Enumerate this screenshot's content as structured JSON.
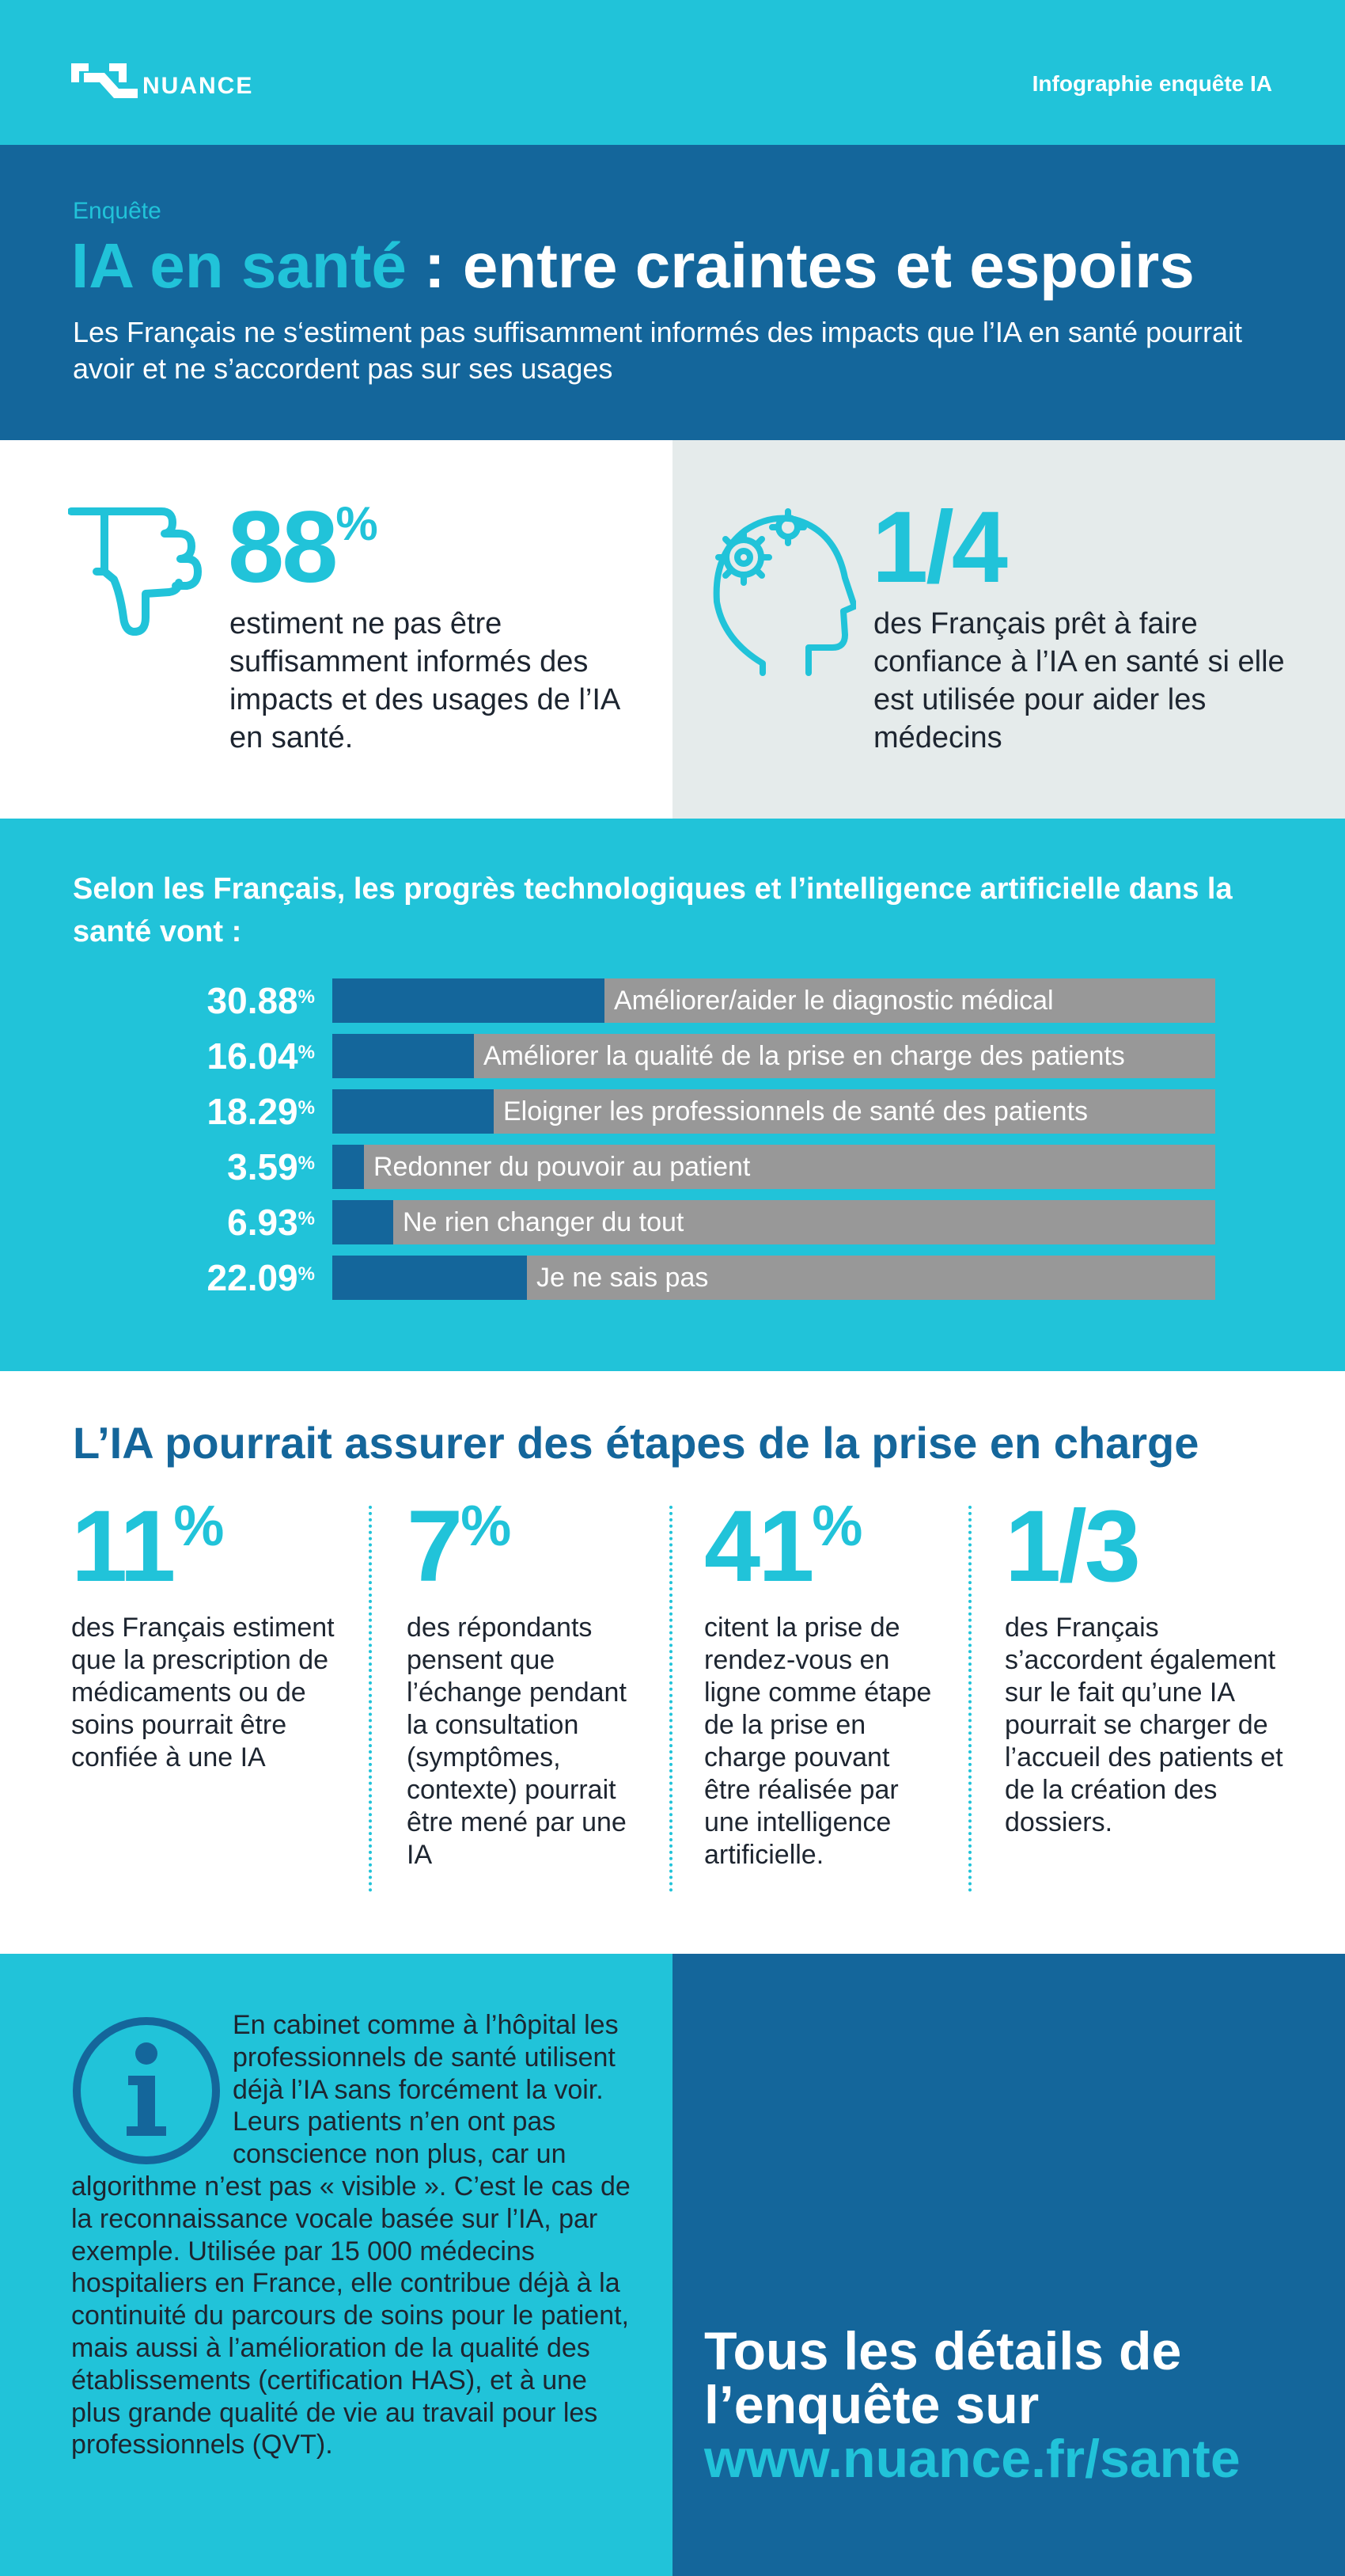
{
  "header": {
    "brand": "NUANCE",
    "label": "Infographie enquête IA"
  },
  "title": {
    "kicker": "Enquête",
    "accent": "IA en santé",
    "rest": " : entre craintes et espoirs",
    "subtitle": "Les Français ne s‘estiment pas suffisamment informés des impacts que l’IA en santé pourrait avoir et ne s’accordent pas sur ses usages"
  },
  "stats": {
    "left": {
      "value": "88",
      "suffix": "%",
      "text": "estiment ne pas être suffisamment informés des impacts et des usages de l’IA en santé.",
      "icon": "thumbs-down-icon"
    },
    "right": {
      "value": "1/4",
      "text": "des Français prêt à faire confiance à l’IA en santé si elle est utilisée pour aider les médecins",
      "icon": "head-gears-icon"
    }
  },
  "progress": {
    "title": "Selon les Français, les progrès technologiques et l’intelligence artificielle dans la santé vont :",
    "bars": [
      {
        "pct": "30.88",
        "value": 30.88,
        "label": "Améliorer/aider le diagnostic médical"
      },
      {
        "pct": "16.04",
        "value": 16.04,
        "label": "Améliorer la qualité de la prise en charge des patients"
      },
      {
        "pct": "18.29",
        "value": 18.29,
        "label": "Eloigner les professionnels de santé des patients"
      },
      {
        "pct": "3.59",
        "value": 3.59,
        "label": "Redonner du pouvoir au patient"
      },
      {
        "pct": "6.93",
        "value": 6.93,
        "label": "Ne rien changer du tout"
      },
      {
        "pct": "22.09",
        "value": 22.09,
        "label": "Je ne sais pas"
      }
    ],
    "pct_symbol": "%"
  },
  "steps": {
    "title": "L’IA pourrait assurer des étapes de la prise en charge",
    "items": [
      {
        "value": "11",
        "suffix": "%",
        "text": "des Français estiment que la prescription de médicaments ou de soins pourrait être confiée à une IA"
      },
      {
        "value": "7",
        "suffix": "%",
        "text": "des répondants pensent que l’échange pendant la consultation (symptômes, contexte) pourrait être mené par une IA"
      },
      {
        "value": "41",
        "suffix": "%",
        "text": "citent la prise de rendez-vous en ligne comme étape de la prise en charge pouvant être réalisée par une intelligence artificielle."
      },
      {
        "value": "1/3",
        "suffix": "",
        "text": "des Français s’accordent également sur le fait qu’une IA pourrait se charger de l’accueil des patients et de la création des dossiers."
      }
    ]
  },
  "info": {
    "icon": "info-icon",
    "text": "En cabinet comme à l’hôpital les professionnels de santé utilisent déjà l’IA sans forcément la voir. Leurs patients n’en ont pas conscience non plus, car un algorithme n’est pas « visible ». C’est le cas de la reconnaissance vocale basée sur l’IA, par exemple. Utilisée par 15 000 médecins hospitaliers en France, elle contribue déjà à la continuité du parcours de soins pour le patient, mais aussi à l’amélioration de la qualité des établissements (certification HAS), et à une plus grande qualité de vie au travail pour les professionnels (QVT)."
  },
  "cta": {
    "text": "Tous les détails de l’enquête sur",
    "url": "www.nuance.fr/sante"
  },
  "colors": {
    "cyan": "#21c3d9",
    "navy": "#14669b",
    "grey": "#989898",
    "light": "#e5ebeb"
  }
}
